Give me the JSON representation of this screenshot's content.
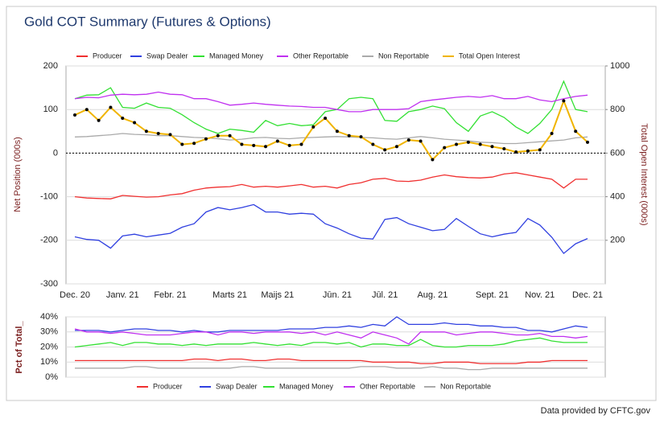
{
  "chart_data": [
    {
      "type": "line",
      "title": "Gold COT Summary (Futures & Options)",
      "ylabel": "Net Position (000s)",
      "y2label": "Total Open Interest (000s)",
      "categories": [
        "Dec. 20",
        null,
        null,
        null,
        "Janv. 21",
        null,
        null,
        null,
        "Febr. 21",
        null,
        null,
        null,
        null,
        "Marts 21",
        null,
        null,
        null,
        "Maijs 21",
        null,
        null,
        null,
        null,
        "Jūn. 21",
        null,
        null,
        null,
        "Jūl. 21",
        null,
        null,
        null,
        "Aug. 21",
        null,
        null,
        null,
        null,
        "Sept. 21",
        null,
        null,
        null,
        "Nov. 21",
        null,
        null,
        null,
        "Dec. 21"
      ],
      "ylim": [
        -300,
        200
      ],
      "yticks": [
        -300,
        -200,
        -100,
        0,
        100,
        200
      ],
      "y2lim": [
        0,
        1000
      ],
      "y2ticks": [
        200,
        400,
        600,
        800,
        1000
      ],
      "grid": true,
      "zero_line": true,
      "legend": "top",
      "series": [
        {
          "name": "Producer",
          "color": "#f03030",
          "values": [
            -100,
            -103,
            -104,
            -105,
            -97,
            -99,
            -101,
            -100,
            -96,
            -93,
            -85,
            -80,
            -78,
            -77,
            -72,
            -78,
            -76,
            -78,
            -75,
            -72,
            -78,
            -76,
            -80,
            -72,
            -68,
            -60,
            -58,
            -64,
            -65,
            -62,
            -55,
            -50,
            -54,
            -56,
            -57,
            -55,
            -48,
            -45,
            -50,
            -55,
            -60,
            -80,
            -60,
            -60
          ]
        },
        {
          "name": "Swap Dealer",
          "color": "#3040e0",
          "values": [
            -192,
            -198,
            -200,
            -218,
            -190,
            -186,
            -192,
            -188,
            -184,
            -170,
            -162,
            -135,
            -125,
            -130,
            -125,
            -118,
            -135,
            -135,
            -140,
            -138,
            -140,
            -162,
            -172,
            -185,
            -195,
            -197,
            -152,
            -148,
            -162,
            -170,
            -178,
            -175,
            -150,
            -168,
            -185,
            -192,
            -186,
            -182,
            -150,
            -165,
            -193,
            -230,
            -208,
            -196
          ]
        },
        {
          "name": "Managed Money",
          "color": "#33e033",
          "values": [
            125,
            133,
            134,
            150,
            105,
            103,
            115,
            105,
            103,
            88,
            70,
            55,
            45,
            55,
            52,
            48,
            75,
            63,
            68,
            63,
            65,
            95,
            100,
            125,
            128,
            125,
            75,
            73,
            95,
            100,
            108,
            102,
            70,
            50,
            85,
            95,
            82,
            60,
            45,
            68,
            100,
            165,
            100,
            95
          ]
        },
        {
          "name": "Other Reportable",
          "color": "#c030f0",
          "values": [
            125,
            128,
            127,
            133,
            135,
            134,
            135,
            140,
            135,
            134,
            125,
            125,
            118,
            110,
            112,
            115,
            112,
            110,
            108,
            107,
            105,
            105,
            100,
            95,
            95,
            100,
            100,
            100,
            102,
            118,
            122,
            125,
            128,
            130,
            128,
            132,
            125,
            125,
            130,
            122,
            118,
            125,
            130,
            133
          ]
        },
        {
          "name": "Non Reportable",
          "color": "#aaaaaa",
          "values": [
            37,
            38,
            40,
            42,
            45,
            43,
            42,
            40,
            40,
            38,
            36,
            35,
            33,
            30,
            32,
            35,
            36,
            34,
            33,
            35,
            36,
            37,
            38,
            37,
            36,
            35,
            33,
            32,
            35,
            38,
            35,
            32,
            30,
            28,
            25,
            24,
            22,
            22,
            24,
            26,
            28,
            30,
            35,
            37
          ]
        },
        {
          "name": "Total Open Interest",
          "color": "#f0b400",
          "axis": "y2",
          "markers": true,
          "values": [
            775,
            800,
            750,
            810,
            760,
            740,
            700,
            690,
            685,
            640,
            645,
            665,
            680,
            680,
            640,
            635,
            630,
            655,
            635,
            640,
            720,
            760,
            700,
            680,
            675,
            640,
            615,
            630,
            660,
            655,
            570,
            625,
            640,
            650,
            640,
            630,
            620,
            605,
            610,
            615,
            690,
            840,
            700,
            650
          ]
        }
      ]
    },
    {
      "type": "line",
      "ylabel": "Pct of Total_",
      "ylim": [
        0,
        40
      ],
      "yticks": [
        {
          "value": 0,
          "label": "0%"
        },
        {
          "value": 10,
          "label": "10%"
        },
        {
          "value": 20,
          "label": "20%"
        },
        {
          "value": 30,
          "label": "30%"
        },
        {
          "value": 40,
          "label": "40%"
        }
      ],
      "grid": true,
      "legend": "bottom",
      "series": [
        {
          "name": "Producer",
          "color": "#f03030",
          "values": [
            11,
            11,
            11,
            11,
            11,
            11,
            11,
            11,
            11,
            11,
            12,
            12,
            11,
            12,
            12,
            11,
            11,
            12,
            12,
            11,
            11,
            11,
            11,
            11,
            11,
            10,
            10,
            10,
            10,
            9,
            9,
            10,
            10,
            10,
            9,
            9,
            9,
            9,
            10,
            10,
            11,
            11,
            11,
            11
          ]
        },
        {
          "name": "Swap Dealer",
          "color": "#3040e0",
          "values": [
            31,
            31,
            31,
            30,
            31,
            32,
            32,
            31,
            31,
            30,
            31,
            30,
            30,
            31,
            31,
            31,
            31,
            31,
            32,
            32,
            32,
            33,
            33,
            34,
            33,
            35,
            34,
            40,
            35,
            35,
            35,
            36,
            35,
            35,
            34,
            34,
            33,
            33,
            31,
            31,
            30,
            32,
            34,
            33
          ]
        },
        {
          "name": "Managed Money",
          "color": "#33e033",
          "values": [
            20,
            21,
            22,
            23,
            21,
            23,
            23,
            22,
            22,
            21,
            22,
            21,
            22,
            22,
            22,
            23,
            22,
            21,
            22,
            21,
            23,
            23,
            22,
            23,
            20,
            22,
            22,
            21,
            21,
            25,
            21,
            20,
            20,
            21,
            21,
            21,
            22,
            24,
            25,
            26,
            24,
            23,
            23,
            23
          ]
        },
        {
          "name": "Other Reportable",
          "color": "#c030f0",
          "values": [
            32,
            30,
            30,
            29,
            30,
            29,
            28,
            28,
            28,
            29,
            30,
            30,
            28,
            30,
            30,
            29,
            30,
            30,
            30,
            29,
            30,
            28,
            30,
            28,
            26,
            30,
            28,
            26,
            22,
            30,
            30,
            30,
            28,
            29,
            30,
            30,
            29,
            28,
            28,
            29,
            27,
            27,
            26,
            27
          ]
        },
        {
          "name": "Non Reportable",
          "color": "#aaaaaa",
          "values": [
            6,
            6,
            6,
            6,
            6,
            7,
            7,
            6,
            6,
            6,
            6,
            6,
            6,
            6,
            7,
            7,
            6,
            6,
            6,
            6,
            6,
            6,
            6,
            6,
            7,
            7,
            7,
            6,
            6,
            6,
            7,
            6,
            6,
            5,
            5,
            6,
            6,
            6,
            6,
            6,
            6,
            6,
            6,
            6
          ]
        }
      ]
    }
  ],
  "source": "Data provided by CFTC.gov"
}
